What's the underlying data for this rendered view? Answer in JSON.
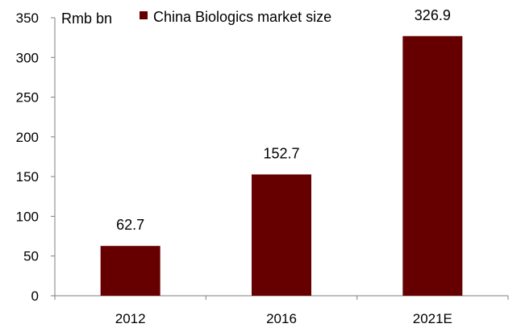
{
  "chart_data": {
    "type": "bar",
    "categories": [
      "2012",
      "2016",
      "2021E"
    ],
    "series": [
      {
        "name": "China Biologics market size",
        "values": [
          62.7,
          152.7,
          326.9
        ],
        "color": "#660000"
      }
    ],
    "data_labels": [
      "62.7",
      "152.7",
      "326.9"
    ],
    "ylabel": "Rmb bn",
    "ylim": [
      0,
      350
    ],
    "yticks": [
      0,
      50,
      100,
      150,
      200,
      250,
      300,
      350
    ],
    "grid": false,
    "legend_position": "top"
  }
}
